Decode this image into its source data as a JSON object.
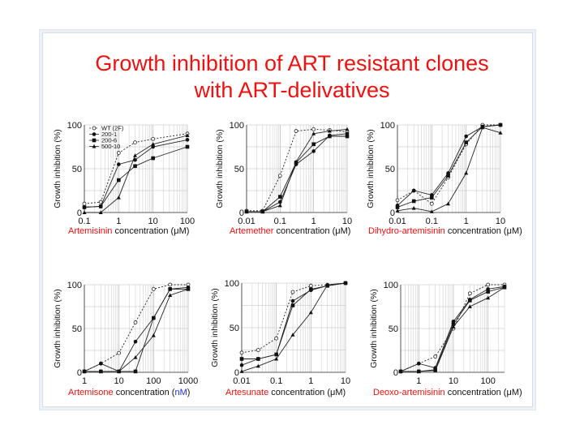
{
  "title_line1": "Growth inhibition of ART resistant clones",
  "title_line2": "with ART-delivatives",
  "colors": {
    "title": "#ee1111",
    "drug": "#ee1111",
    "unit_nm": "#1a2ee0"
  },
  "chart_data": [
    {
      "type": "line",
      "x_scale": "log",
      "xlim": [
        0.1,
        100
      ],
      "ylim": [
        0,
        100
      ],
      "x_ticks": [
        "0.1",
        "1",
        "10",
        "100"
      ],
      "y_ticks": [
        "0",
        "50",
        "100"
      ],
      "ylabel": "Growth inhibition (%)",
      "xlabel_drug": "Artemisinin",
      "xlabel_rest": " concentration (",
      "xlabel_unit": "μ",
      "xlabel_end": "M)",
      "legend": [
        "WT (2F)",
        "200-1",
        "200-6",
        "500-10"
      ],
      "series": [
        {
          "name": "WT (2F)",
          "x": [
            0.1,
            0.3,
            1,
            3,
            10,
            100
          ],
          "y": [
            10,
            12,
            68,
            80,
            84,
            90
          ]
        },
        {
          "name": "200-1",
          "x": [
            0.1,
            0.3,
            1,
            3,
            10,
            100
          ],
          "y": [
            6,
            7,
            55,
            60,
            75,
            83
          ]
        },
        {
          "name": "200-6",
          "x": [
            0.1,
            0.3,
            1,
            3,
            10,
            100
          ],
          "y": [
            6,
            7,
            37,
            53,
            62,
            75
          ]
        },
        {
          "name": "500-10",
          "x": [
            0.1,
            0.3,
            1,
            3,
            10,
            100
          ],
          "y": [
            0,
            0,
            17,
            65,
            78,
            88
          ]
        }
      ]
    },
    {
      "type": "line",
      "x_scale": "log",
      "xlim": [
        0.01,
        10
      ],
      "ylim": [
        0,
        100
      ],
      "x_ticks": [
        "0.01",
        "0.1",
        "1",
        "10"
      ],
      "y_ticks": [
        "0",
        "50",
        "100"
      ],
      "ylabel": "Growth inhibition (%)",
      "xlabel_drug": "Artemether",
      "xlabel_rest": " concentration (",
      "xlabel_unit": "μ",
      "xlabel_end": "M)",
      "series": [
        {
          "name": "WT (2F)",
          "x": [
            0.01,
            0.03,
            0.1,
            0.3,
            1,
            3,
            10
          ],
          "y": [
            2,
            2,
            42,
            93,
            95,
            94,
            92
          ]
        },
        {
          "name": "200-1",
          "x": [
            0.01,
            0.03,
            0.1,
            0.3,
            1,
            3,
            10
          ],
          "y": [
            1,
            1,
            12,
            55,
            70,
            88,
            90
          ]
        },
        {
          "name": "200-6",
          "x": [
            0.01,
            0.03,
            0.1,
            0.3,
            1,
            3,
            10
          ],
          "y": [
            1,
            1,
            18,
            57,
            78,
            87,
            87
          ]
        },
        {
          "name": "500-10",
          "x": [
            0.01,
            0.03,
            0.1,
            0.3,
            1,
            3,
            10
          ],
          "y": [
            1,
            1,
            8,
            58,
            90,
            93,
            95
          ]
        }
      ]
    },
    {
      "type": "line",
      "x_scale": "log",
      "xlim": [
        0.01,
        10
      ],
      "ylim": [
        0,
        100
      ],
      "x_ticks": [
        "0.01",
        "0.1",
        "1",
        "10"
      ],
      "y_ticks": [
        "0",
        "50",
        "100"
      ],
      "ylabel": "Growth inhibition (%)",
      "xlabel_drug": "Dihydro-artemisinin",
      "xlabel_rest": " concentration (",
      "xlabel_unit": "μ",
      "xlabel_end": "M)",
      "series": [
        {
          "name": "WT (2F)",
          "x": [
            0.01,
            0.03,
            0.1,
            0.3,
            1,
            3,
            10
          ],
          "y": [
            14,
            25,
            10,
            40,
            78,
            100,
            100
          ]
        },
        {
          "name": "200-1",
          "x": [
            0.01,
            0.03,
            0.1,
            0.3,
            1,
            3,
            10
          ],
          "y": [
            8,
            25,
            20,
            45,
            87,
            98,
            100
          ]
        },
        {
          "name": "200-6",
          "x": [
            0.01,
            0.03,
            0.1,
            0.3,
            1,
            3,
            10
          ],
          "y": [
            6,
            13,
            17,
            42,
            80,
            98,
            100
          ]
        },
        {
          "name": "500-10",
          "x": [
            0.01,
            0.03,
            0.1,
            0.3,
            1,
            3,
            10
          ],
          "y": [
            2,
            5,
            1,
            10,
            45,
            97,
            91
          ]
        }
      ]
    },
    {
      "type": "line",
      "x_scale": "log",
      "xlim": [
        1,
        1000
      ],
      "ylim": [
        0,
        100
      ],
      "x_ticks": [
        "1",
        "10",
        "100",
        "1000"
      ],
      "y_ticks": [
        "0",
        "50",
        "100"
      ],
      "ylabel": "Growth inhibition (%)",
      "xlabel_drug": "Artemisone",
      "xlabel_rest": " concentration (",
      "xlabel_unit": "nM",
      "xlabel_end": ")",
      "series": [
        {
          "name": "WT (2F)",
          "x": [
            1,
            3,
            10,
            30,
            100,
            300,
            1000
          ],
          "y": [
            1,
            10,
            22,
            57,
            95,
            100,
            100
          ]
        },
        {
          "name": "200-1",
          "x": [
            1,
            3,
            10,
            30,
            100,
            300,
            1000
          ],
          "y": [
            1,
            10,
            1,
            35,
            62,
            95,
            97
          ]
        },
        {
          "name": "200-6",
          "x": [
            1,
            3,
            10,
            30,
            100,
            300,
            1000
          ],
          "y": [
            1,
            1,
            1,
            1,
            62,
            95,
            95
          ]
        },
        {
          "name": "500-10",
          "x": [
            1,
            3,
            10,
            30,
            100,
            300,
            1000
          ],
          "y": [
            1,
            1,
            1,
            17,
            42,
            88,
            95
          ]
        }
      ]
    },
    {
      "type": "line",
      "x_scale": "log",
      "xlim": [
        0.01,
        10
      ],
      "ylim": [
        0,
        100
      ],
      "x_ticks": [
        "0.01",
        "0.1",
        "1",
        "10"
      ],
      "y_ticks": [
        "0",
        "50",
        "100"
      ],
      "ylabel": "Growth inhibition (%)",
      "xlabel_drug": "Artesunate",
      "xlabel_rest": " concentration (",
      "xlabel_unit": "μ",
      "xlabel_end": "M)",
      "series": [
        {
          "name": "WT (2F)",
          "x": [
            0.01,
            0.03,
            0.1,
            0.3,
            1,
            3,
            10
          ],
          "y": [
            22,
            25,
            38,
            90,
            97,
            98,
            100
          ]
        },
        {
          "name": "200-1",
          "x": [
            0.01,
            0.03,
            0.1,
            0.3,
            1,
            3,
            10
          ],
          "y": [
            8,
            15,
            20,
            80,
            92,
            97,
            100
          ]
        },
        {
          "name": "200-6",
          "x": [
            0.01,
            0.03,
            0.1,
            0.3,
            1,
            3,
            10
          ],
          "y": [
            15,
            15,
            20,
            75,
            93,
            97,
            100
          ]
        },
        {
          "name": "500-10",
          "x": [
            0.01,
            0.03,
            0.1,
            0.3,
            1,
            3,
            10
          ],
          "y": [
            1,
            7,
            15,
            42,
            67,
            98,
            100
          ]
        }
      ]
    },
    {
      "type": "line",
      "x_scale": "log",
      "xlim": [
        0.3,
        300
      ],
      "ylim": [
        0,
        100
      ],
      "x_ticks": [
        "1",
        "10",
        "100"
      ],
      "y_ticks": [
        "0",
        "50",
        "100"
      ],
      "ylabel": "Growth inhibition (%)",
      "xlabel_drug": "Deoxo-artemisinin",
      "xlabel_rest": " concentration (",
      "xlabel_unit": "μ",
      "xlabel_end": "M)",
      "series": [
        {
          "name": "WT (2F)",
          "x": [
            0.3,
            1,
            3,
            10,
            30,
            100,
            300
          ],
          "y": [
            1,
            10,
            18,
            50,
            90,
            100,
            100
          ]
        },
        {
          "name": "200-1",
          "x": [
            0.3,
            1,
            3,
            10,
            30,
            100,
            300
          ],
          "y": [
            1,
            10,
            5,
            58,
            83,
            95,
            98
          ]
        },
        {
          "name": "200-6",
          "x": [
            0.3,
            1,
            3,
            10,
            30,
            100,
            300
          ],
          "y": [
            1,
            1,
            3,
            55,
            82,
            92,
            97
          ]
        },
        {
          "name": "500-10",
          "x": [
            0.3,
            1,
            3,
            10,
            30,
            100,
            300
          ],
          "y": [
            1,
            1,
            2,
            52,
            75,
            85,
            97
          ]
        }
      ]
    }
  ]
}
